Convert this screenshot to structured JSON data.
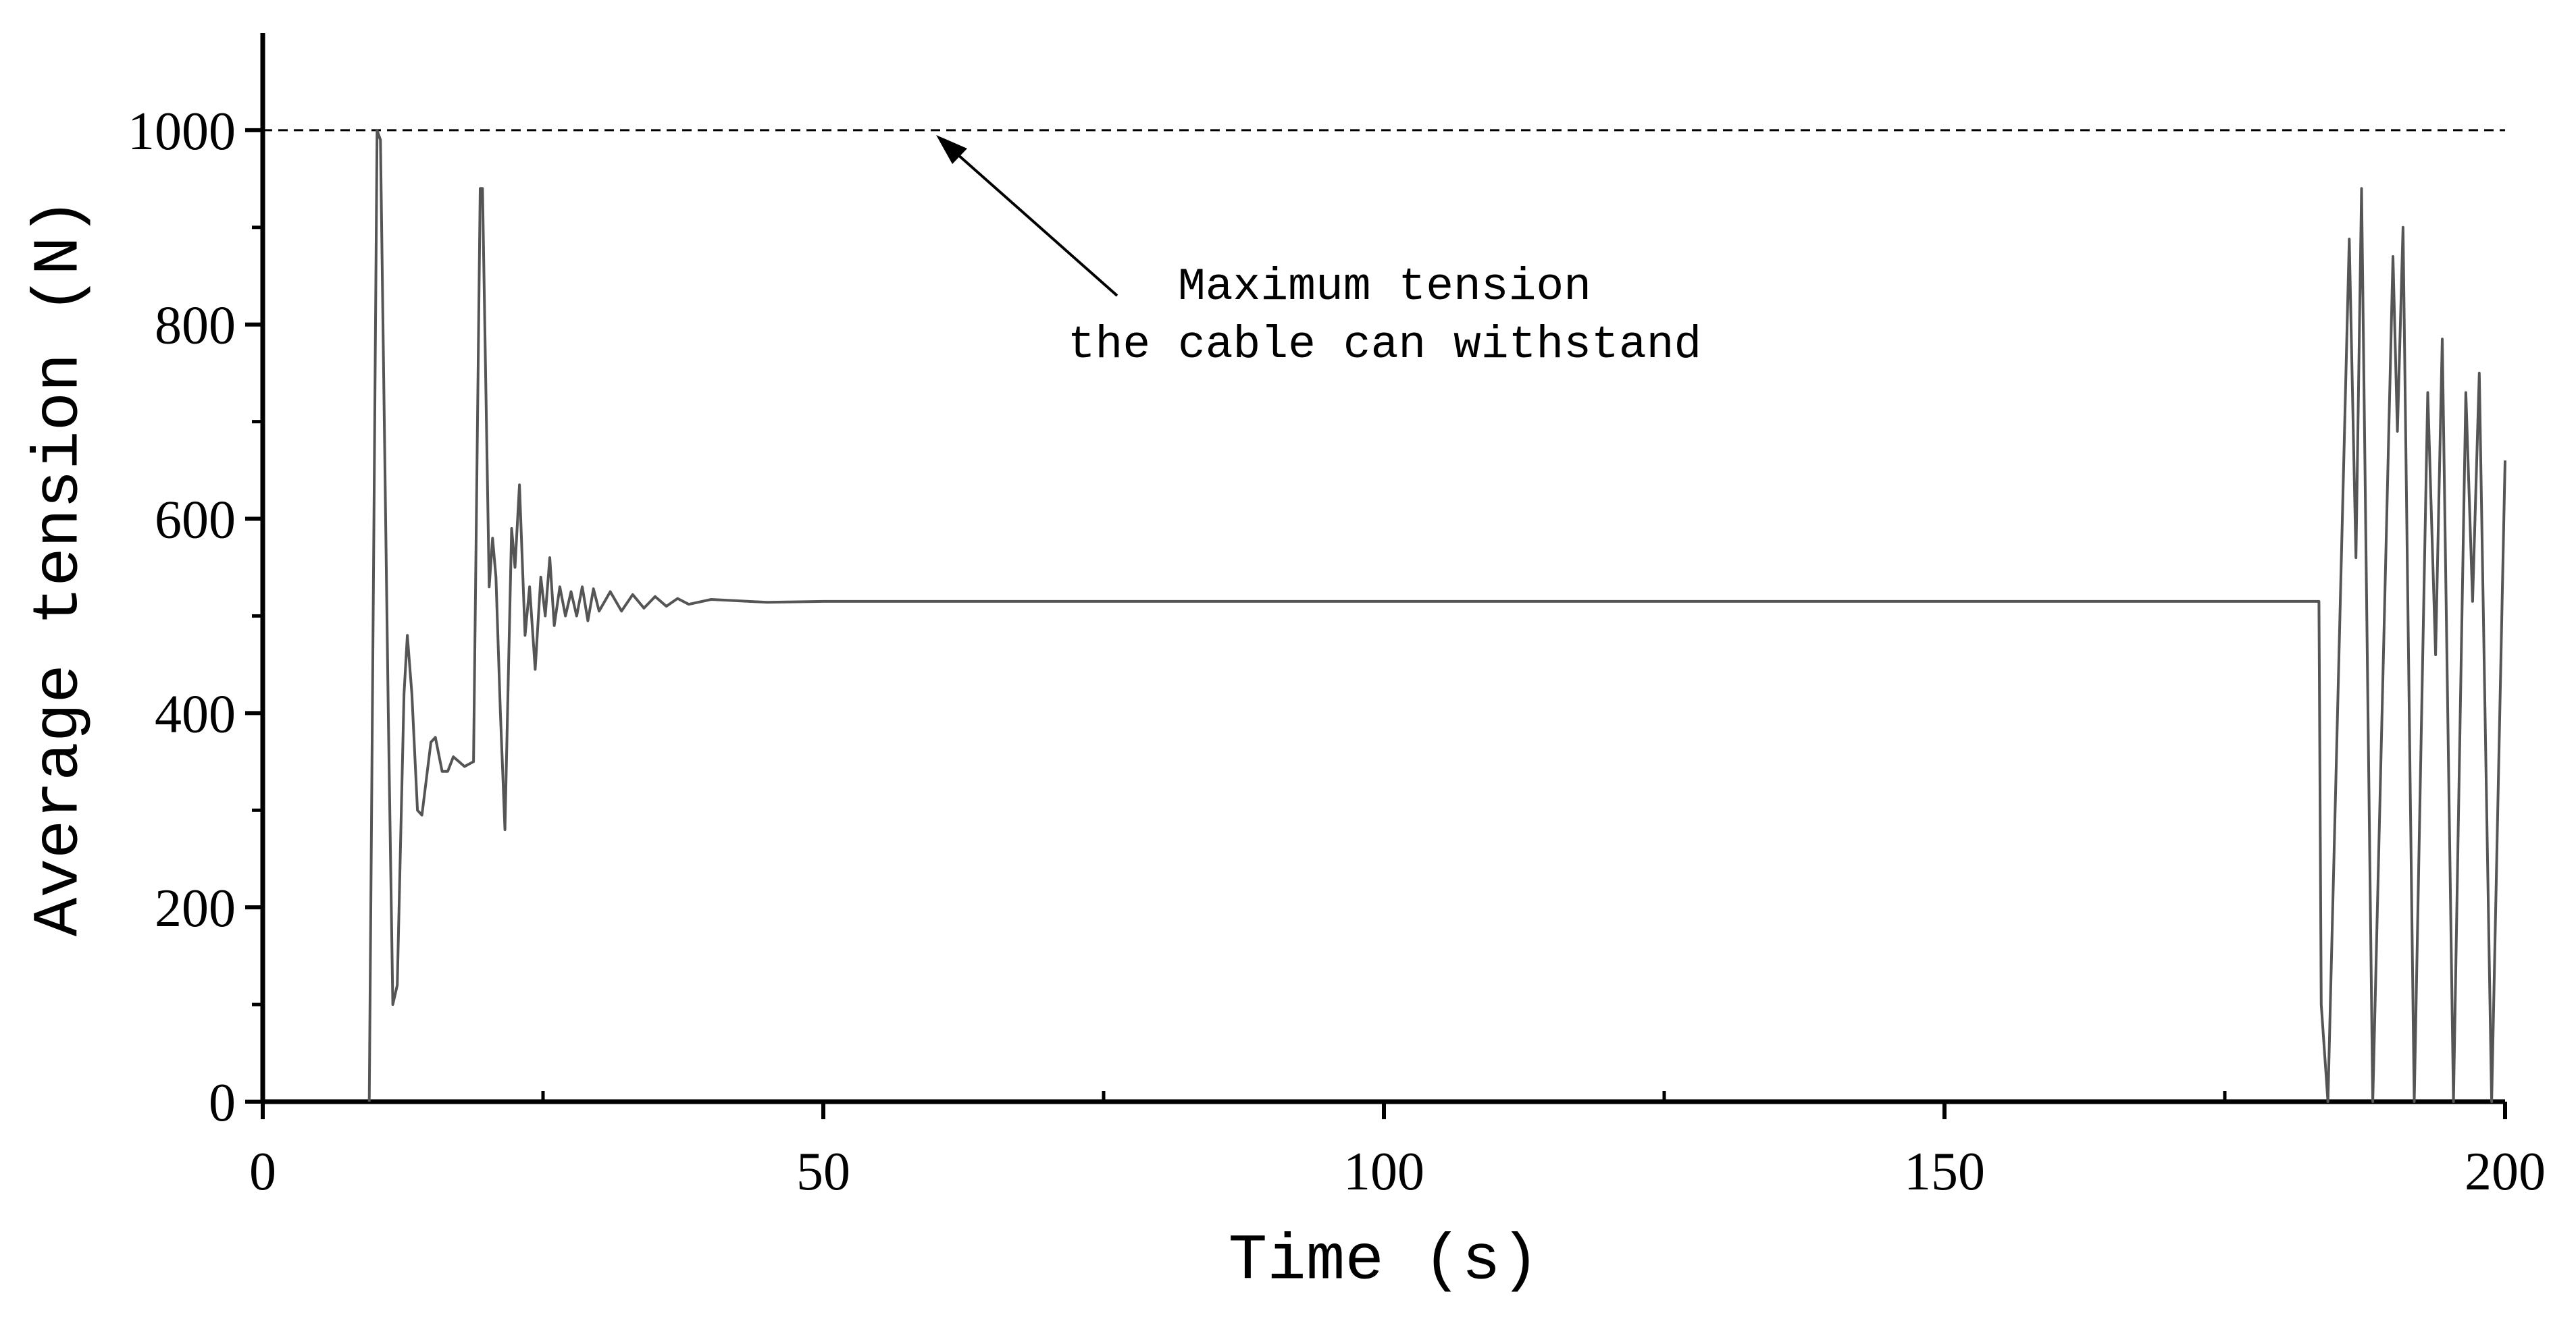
{
  "chart_data": {
    "type": "line",
    "x_label": "Time (s)",
    "y_label": "Average tension (N)",
    "xlim": [
      0,
      200
    ],
    "xticks": [
      0,
      50,
      100,
      150,
      200
    ],
    "ylim": [
      0,
      1100
    ],
    "yticks": [
      0,
      200,
      400,
      600,
      800,
      1000
    ],
    "reference_line": {
      "value": 1000,
      "style": "dashed"
    },
    "annotation": [
      "Maximum tension",
      "the cable can withstand"
    ],
    "series": [
      {
        "name": "Average tension",
        "color": "#555555",
        "x": [
          9.5,
          10.2,
          10.5,
          11.2,
          11.6,
          12,
          12.6,
          12.9,
          13.3,
          13.8,
          14.2,
          15,
          15.4,
          16,
          16.5,
          17,
          17.5,
          18,
          18.8,
          19.4,
          19.6,
          20.2,
          20.5,
          20.8,
          21.2,
          21.6,
          22.2,
          22.5,
          22.9,
          23.4,
          23.8,
          24.3,
          24.8,
          25.2,
          25.6,
          26,
          26.5,
          27,
          27.5,
          28,
          28.5,
          29,
          29.5,
          30,
          31,
          32,
          33,
          34,
          35,
          36,
          37,
          38,
          40,
          45,
          50,
          60,
          183.4,
          183.6,
          184.2,
          186.1,
          186.7,
          187.2,
          188.2,
          190,
          190.4,
          190.9,
          191.9,
          193.1,
          193.8,
          194.4,
          195.4,
          196.5,
          197.1,
          197.7,
          198.8,
          200
        ],
        "values": [
          0,
          1000,
          990,
          400,
          100,
          120,
          420,
          480,
          420,
          300,
          295,
          370,
          375,
          340,
          340,
          355,
          350,
          345,
          350,
          940,
          940,
          530,
          580,
          540,
          400,
          280,
          590,
          550,
          635,
          480,
          530,
          445,
          540,
          500,
          560,
          490,
          530,
          500,
          525,
          500,
          530,
          495,
          528,
          505,
          525,
          505,
          522,
          508,
          520,
          510,
          518,
          512,
          517,
          514,
          515,
          515,
          515,
          100,
          0,
          888,
          560,
          940,
          0,
          870,
          690,
          900,
          0,
          730,
          460,
          785,
          0,
          730,
          515,
          750,
          0,
          660
        ]
      }
    ]
  }
}
